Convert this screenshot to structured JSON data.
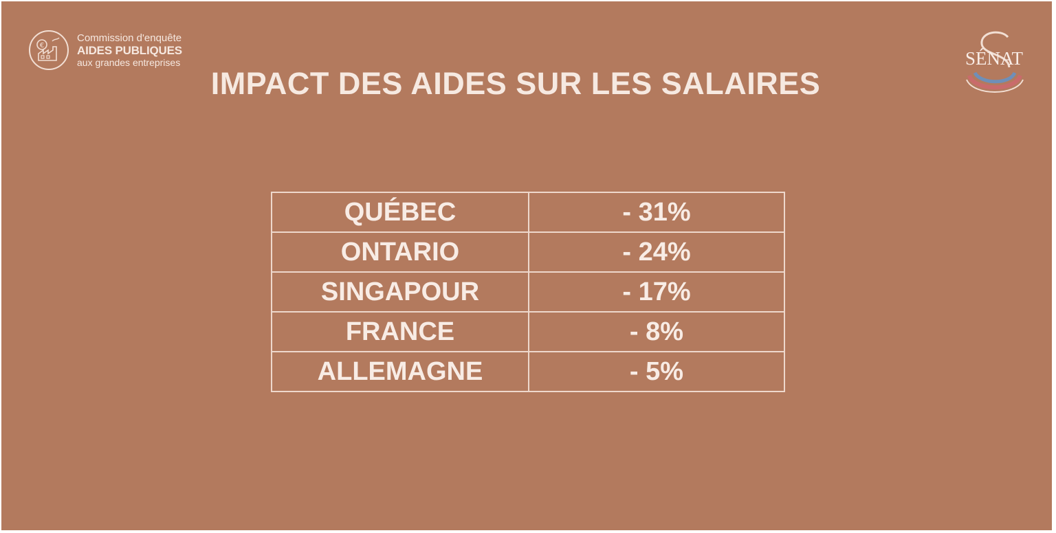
{
  "header": {
    "commission": {
      "line1": "Commission d'enquête",
      "line2": "AIDES PUBLIQUES",
      "line3": "aux grandes entreprises",
      "icon": "factory-euro-icon"
    },
    "senat_logo": {
      "text": "SÉNAT",
      "icon": "senat-seal-icon"
    }
  },
  "title": "IMPACT DES AIDES SUR LES SALAIRES",
  "table": {
    "rows": [
      {
        "country": "QUÉBEC",
        "value": "- 31%"
      },
      {
        "country": "ONTARIO",
        "value": "- 24%"
      },
      {
        "country": "SINGAPOUR",
        "value": "- 17%"
      },
      {
        "country": "FRANCE",
        "value": "- 8%"
      },
      {
        "country": "ALLEMAGNE",
        "value": "- 5%"
      }
    ]
  },
  "colors": {
    "background": "#b37a5e",
    "text": "#f6e9e1",
    "border": "#eed8cc",
    "senat_red": "#c96b6b",
    "senat_blue": "#6f8fb8"
  }
}
